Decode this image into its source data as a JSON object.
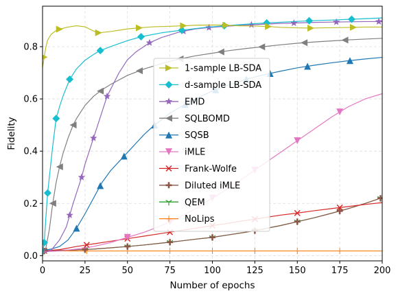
{
  "chart_data": {
    "type": "line",
    "title": "",
    "xlabel": "Number of epochs",
    "ylabel": "Fidelity",
    "xlim": [
      0,
      200
    ],
    "ylim": [
      -0.02,
      0.955
    ],
    "xticks": [
      0,
      25,
      50,
      75,
      100,
      125,
      150,
      175,
      200
    ],
    "yticks": [
      0.0,
      0.2,
      0.4,
      0.6,
      0.8
    ],
    "ytick_labels": [
      "0.0",
      "0.2",
      "0.4",
      "0.6",
      "0.8"
    ],
    "grid": true,
    "legend_position": "center",
    "series": [
      {
        "name": "1-sample LB-SDA",
        "color": "#bcbd22",
        "marker": "triangle-right",
        "x": [
          0,
          1,
          2,
          3,
          5,
          8,
          10,
          15,
          20,
          25,
          30,
          33,
          40,
          50,
          57,
          65,
          75,
          83,
          90,
          100,
          108,
          115,
          125,
          133,
          140,
          150,
          158,
          165,
          175,
          183,
          190,
          200
        ],
        "y": [
          0.72,
          0.76,
          0.8,
          0.825,
          0.847,
          0.862,
          0.867,
          0.875,
          0.88,
          0.876,
          0.86,
          0.853,
          0.858,
          0.868,
          0.872,
          0.876,
          0.878,
          0.88,
          0.882,
          0.883,
          0.882,
          0.88,
          0.879,
          0.877,
          0.874,
          0.872,
          0.871,
          0.872,
          0.873,
          0.874,
          0.875,
          0.875
        ],
        "markers_x": [
          1,
          10,
          33,
          57,
          83,
          108,
          133,
          158,
          183
        ]
      },
      {
        "name": "d-sample LB-SDA",
        "color": "#17becf",
        "marker": "diamond",
        "x": [
          0,
          1,
          2,
          3,
          4,
          6,
          8,
          10,
          12,
          16,
          20,
          25,
          30,
          34,
          40,
          50,
          58,
          70,
          82,
          95,
          107,
          120,
          132,
          145,
          157,
          170,
          182,
          190,
          200
        ],
        "y": [
          0.005,
          0.05,
          0.15,
          0.24,
          0.3,
          0.42,
          0.525,
          0.57,
          0.61,
          0.675,
          0.715,
          0.748,
          0.77,
          0.785,
          0.8,
          0.823,
          0.838,
          0.853,
          0.863,
          0.873,
          0.88,
          0.886,
          0.891,
          0.895,
          0.899,
          0.902,
          0.905,
          0.907,
          0.91
        ],
        "markers_x": [
          1,
          3,
          8,
          16,
          34,
          58,
          82,
          107,
          132,
          157,
          182
        ]
      },
      {
        "name": "EMD",
        "color": "#9467bd",
        "marker": "star",
        "x": [
          0,
          5,
          10,
          14,
          18,
          20,
          23,
          25,
          30,
          35,
          38,
          45,
          50,
          55,
          63,
          70,
          80,
          90,
          98,
          108,
          118,
          130,
          140,
          150,
          160,
          170,
          180,
          190,
          200
        ],
        "y": [
          0.01,
          0.02,
          0.06,
          0.11,
          0.2,
          0.24,
          0.3,
          0.35,
          0.45,
          0.55,
          0.61,
          0.7,
          0.75,
          0.78,
          0.815,
          0.835,
          0.855,
          0.868,
          0.873,
          0.878,
          0.882,
          0.886,
          0.889,
          0.891,
          0.893,
          0.894,
          0.895,
          0.896,
          0.896
        ],
        "markers_x": [
          16,
          23,
          30,
          38,
          63,
          83,
          98,
          123,
          148,
          173,
          198
        ]
      },
      {
        "name": "SQLBOMD",
        "color": "#7f7f7f",
        "marker": "triangle-left",
        "x": [
          0,
          2,
          4,
          6,
          8,
          10,
          12,
          15,
          18,
          20,
          25,
          30,
          35,
          40,
          50,
          60,
          70,
          80,
          90,
          100,
          110,
          120,
          130,
          140,
          150,
          160,
          170,
          180,
          190,
          200
        ],
        "y": [
          0.0,
          0.03,
          0.1,
          0.2,
          0.28,
          0.34,
          0.39,
          0.45,
          0.5,
          0.525,
          0.575,
          0.61,
          0.635,
          0.655,
          0.69,
          0.715,
          0.735,
          0.752,
          0.765,
          0.775,
          0.785,
          0.793,
          0.8,
          0.807,
          0.813,
          0.818,
          0.822,
          0.826,
          0.829,
          0.832
        ],
        "markers_x": [
          6,
          10,
          18,
          34,
          57,
          81,
          105,
          129,
          154,
          178
        ]
      },
      {
        "name": "SQSB",
        "color": "#1f77b4",
        "marker": "triangle-up",
        "x": [
          0,
          5,
          10,
          15,
          20,
          25,
          30,
          35,
          40,
          45,
          50,
          55,
          60,
          65,
          70,
          75,
          80,
          90,
          100,
          110,
          120,
          130,
          140,
          150,
          160,
          170,
          180,
          190,
          200
        ],
        "y": [
          0.02,
          0.025,
          0.035,
          0.06,
          0.105,
          0.16,
          0.22,
          0.28,
          0.325,
          0.36,
          0.395,
          0.43,
          0.465,
          0.495,
          0.52,
          0.545,
          0.565,
          0.6,
          0.63,
          0.655,
          0.675,
          0.692,
          0.706,
          0.719,
          0.729,
          0.738,
          0.746,
          0.753,
          0.759
        ],
        "markers_x": [
          20,
          34,
          48,
          66,
          84,
          102,
          120,
          134,
          156,
          181
        ]
      },
      {
        "name": "iMLE",
        "color": "#e377c2",
        "marker": "triangle-down",
        "x": [
          0,
          10,
          20,
          30,
          40,
          50,
          60,
          70,
          80,
          90,
          100,
          110,
          120,
          130,
          140,
          150,
          160,
          170,
          180,
          190,
          200
        ],
        "y": [
          0.015,
          0.018,
          0.025,
          0.035,
          0.05,
          0.07,
          0.09,
          0.115,
          0.145,
          0.18,
          0.22,
          0.26,
          0.305,
          0.35,
          0.395,
          0.44,
          0.485,
          0.53,
          0.57,
          0.6,
          0.62
        ],
        "markers_x": [
          50,
          75,
          100,
          125,
          150,
          175
        ]
      },
      {
        "name": "Frank-Wolfe",
        "color": "#d62728",
        "marker": "x",
        "x": [
          0,
          10,
          20,
          30,
          40,
          50,
          60,
          70,
          80,
          90,
          100,
          110,
          120,
          130,
          140,
          150,
          160,
          170,
          180,
          190,
          200
        ],
        "y": [
          0.018,
          0.023,
          0.035,
          0.045,
          0.055,
          0.065,
          0.075,
          0.085,
          0.095,
          0.105,
          0.115,
          0.125,
          0.135,
          0.145,
          0.155,
          0.163,
          0.172,
          0.18,
          0.188,
          0.196,
          0.203
        ],
        "markers_x": [
          1,
          26,
          50,
          75,
          100,
          125,
          150,
          175
        ]
      },
      {
        "name": "Diluted iMLE",
        "color": "#8c564b",
        "marker": "plus",
        "x": [
          0,
          10,
          20,
          30,
          40,
          50,
          60,
          70,
          80,
          90,
          100,
          110,
          120,
          130,
          140,
          150,
          160,
          170,
          180,
          190,
          200
        ],
        "y": [
          0.018,
          0.02,
          0.022,
          0.025,
          0.03,
          0.035,
          0.041,
          0.048,
          0.055,
          0.063,
          0.07,
          0.08,
          0.09,
          0.102,
          0.115,
          0.13,
          0.145,
          0.162,
          0.18,
          0.2,
          0.222
        ],
        "markers_x": [
          1,
          25,
          50,
          75,
          100,
          125,
          150,
          175,
          199
        ]
      },
      {
        "name": "QEM",
        "color": "#2ca02c",
        "marker": "tri-down",
        "x": [
          0,
          10,
          20,
          30,
          40,
          50,
          60,
          70,
          80,
          90,
          100,
          110,
          120,
          130,
          140,
          150,
          160,
          170,
          180,
          190,
          200
        ],
        "y": [
          0.018,
          0.02,
          0.022,
          0.025,
          0.03,
          0.035,
          0.041,
          0.048,
          0.055,
          0.063,
          0.07,
          0.08,
          0.09,
          0.102,
          0.115,
          0.13,
          0.145,
          0.162,
          0.18,
          0.2,
          0.222
        ],
        "markers_x": [
          1,
          25,
          50,
          75,
          100,
          125,
          150,
          175,
          199
        ]
      },
      {
        "name": "NoLips",
        "color": "#ff7f0e",
        "marker": "tick-plus",
        "x": [
          0,
          200
        ],
        "y": [
          0.018,
          0.018
        ],
        "markers_x": [
          1,
          26,
          50,
          75,
          100,
          125,
          150,
          175
        ]
      }
    ]
  }
}
